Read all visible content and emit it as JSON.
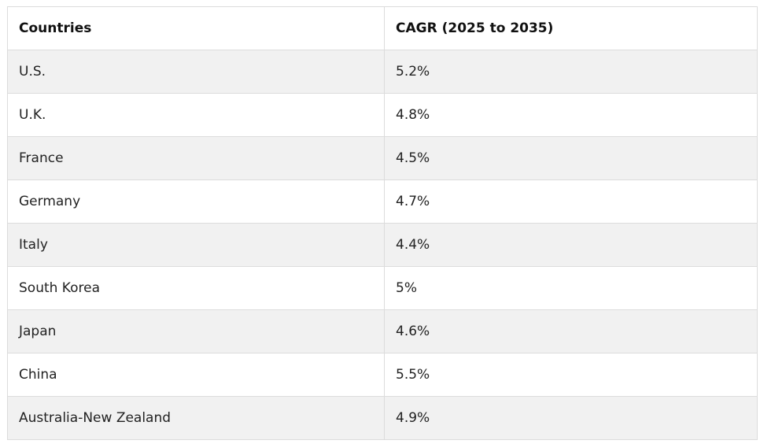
{
  "table": {
    "headers": [
      "Countries",
      "CAGR (2025 to 2035)"
    ],
    "rows": [
      [
        "U.S.",
        "5.2%"
      ],
      [
        "U.K.",
        "4.8%"
      ],
      [
        "France",
        "4.5%"
      ],
      [
        "Germany",
        "4.7%"
      ],
      [
        "Italy",
        "4.4%"
      ],
      [
        "South Korea",
        "5%"
      ],
      [
        "Japan",
        "4.6%"
      ],
      [
        "China",
        "5.5%"
      ],
      [
        "Australia-New Zealand",
        "4.9%"
      ]
    ]
  }
}
